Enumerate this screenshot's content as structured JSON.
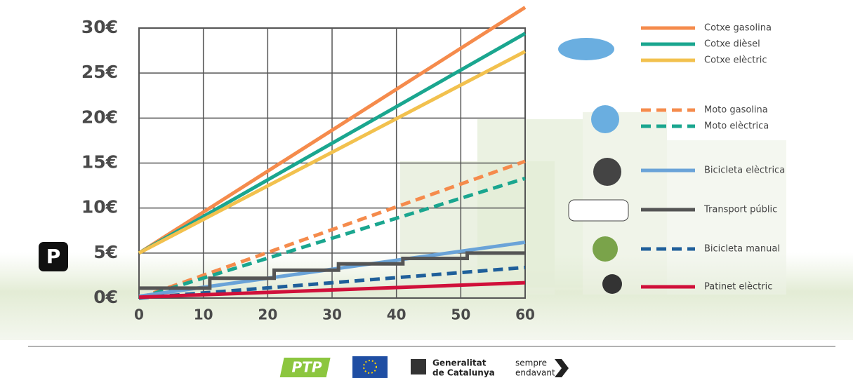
{
  "chart_data": {
    "type": "line",
    "xlim": [
      0,
      60
    ],
    "xticks": [
      0,
      10,
      20,
      30,
      40,
      50,
      60
    ],
    "ylim": [
      0,
      30
    ],
    "yticks": [
      {
        "value": 0,
        "label": "0€"
      },
      {
        "value": 5,
        "label": "5€"
      },
      {
        "value": 10,
        "label": "10€"
      },
      {
        "value": 15,
        "label": "15€"
      },
      {
        "value": 20,
        "label": "20€"
      },
      {
        "value": 25,
        "label": "25€"
      },
      {
        "value": 30,
        "label": "30€"
      }
    ],
    "grid": true,
    "legend": "right",
    "series": [
      {
        "name": "Cotxe gasolina",
        "color": "#f58b4c",
        "dashed": false,
        "x": [
          0,
          60
        ],
        "values": [
          5,
          32.3
        ]
      },
      {
        "name": "Cotxe dièsel",
        "color": "#1aa68f",
        "dashed": false,
        "x": [
          0,
          60
        ],
        "values": [
          5,
          29.4
        ]
      },
      {
        "name": "Cotxe elèctric",
        "color": "#f2c14e",
        "dashed": false,
        "x": [
          0,
          60
        ],
        "values": [
          5,
          27.4
        ]
      },
      {
        "name": "Moto gasolina",
        "color": "#f58b4c",
        "dashed": true,
        "x": [
          0,
          60
        ],
        "values": [
          0,
          15.2
        ]
      },
      {
        "name": "Moto elèctrica",
        "color": "#1aa68f",
        "dashed": true,
        "x": [
          0,
          60
        ],
        "values": [
          0,
          13.3
        ]
      },
      {
        "name": "Bicicleta elèctrica",
        "color": "#6aa3d8",
        "dashed": false,
        "x": [
          0,
          60
        ],
        "values": [
          0.2,
          6.2
        ]
      },
      {
        "name": "Transport públic",
        "color": "#555555",
        "dashed": false,
        "x": [
          0,
          11,
          11,
          21,
          21,
          31,
          31,
          41,
          41,
          51,
          51,
          60
        ],
        "values": [
          1.1,
          1.1,
          2.2,
          2.2,
          3.1,
          3.1,
          3.8,
          3.8,
          4.4,
          4.4,
          5.0,
          5.0
        ]
      },
      {
        "name": "Bicicleta manual",
        "color": "#1f5f9a",
        "dashed": true,
        "x": [
          0,
          60
        ],
        "values": [
          0,
          3.4
        ]
      },
      {
        "name": "Patinet elèctric",
        "color": "#d0103a",
        "dashed": false,
        "x": [
          0,
          60
        ],
        "values": [
          0.1,
          1.7
        ]
      }
    ]
  },
  "badge": "P",
  "footer": {
    "ptp": "PTP",
    "generalitat": [
      "Generalitat",
      "de Catalunya"
    ],
    "slogan": [
      "sempre",
      "endavant"
    ]
  }
}
